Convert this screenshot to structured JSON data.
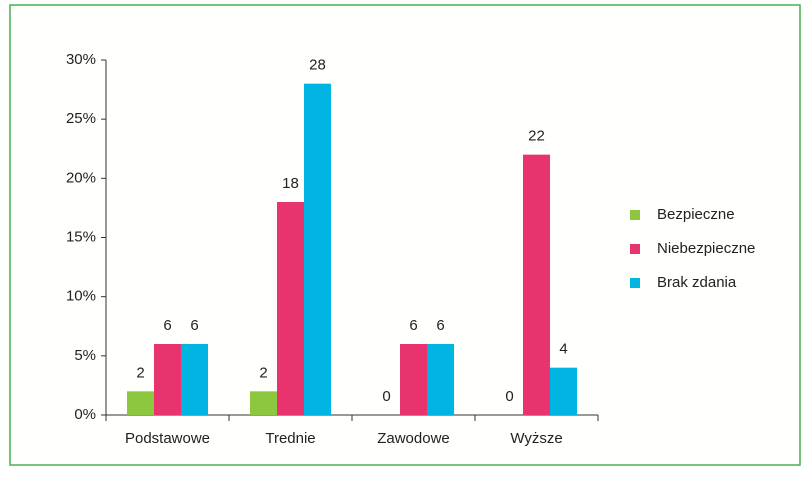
{
  "chart_data": {
    "type": "bar",
    "categories": [
      "Podstawowe",
      "Trednie",
      "Zawodowe",
      "Wyższe"
    ],
    "series": [
      {
        "name": "Bezpieczne",
        "color": "#8dc63f",
        "values": [
          2,
          2,
          0,
          0
        ]
      },
      {
        "name": "Niebezpieczne",
        "color": "#e8336f",
        "values": [
          6,
          18,
          6,
          22
        ]
      },
      {
        "name": "Brak zdania",
        "color": "#00b5e2",
        "values": [
          6,
          28,
          6,
          4
        ]
      }
    ],
    "ylim": [
      0,
      30
    ],
    "yticks": [
      {
        "value": 0,
        "label": "0%"
      },
      {
        "value": 5,
        "label": "5%"
      },
      {
        "value": 10,
        "label": "10%"
      },
      {
        "value": 15,
        "label": "15%"
      },
      {
        "value": 20,
        "label": "20%"
      },
      {
        "value": 25,
        "label": "25%"
      },
      {
        "value": 30,
        "label": "30%"
      }
    ],
    "legend": "right"
  }
}
